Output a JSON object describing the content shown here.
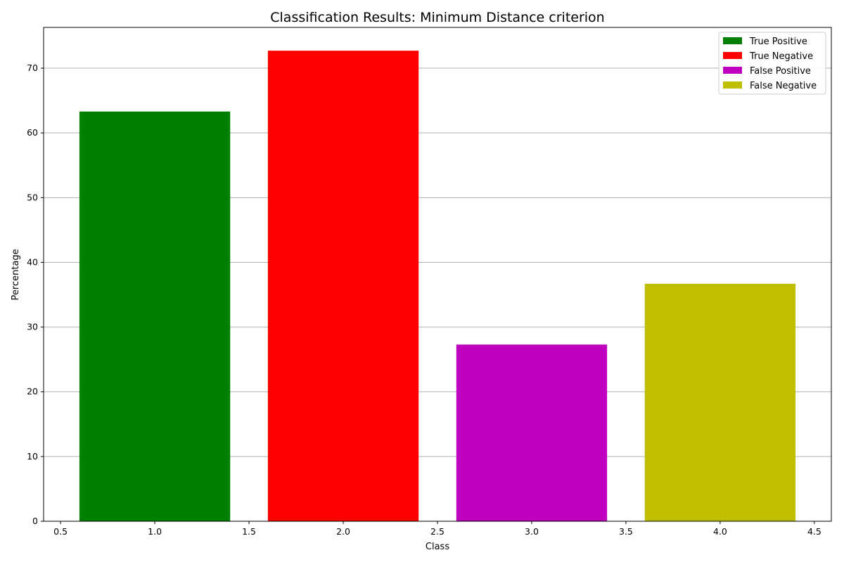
{
  "chart_data": {
    "type": "bar",
    "title": "Classification Results: Minimum Distance criterion",
    "xlabel": "Class",
    "ylabel": "Percentage",
    "xlim": [
      0.41,
      4.59
    ],
    "ylim": [
      0,
      76.3
    ],
    "x_ticks": [
      0.5,
      1.0,
      1.5,
      2.0,
      2.5,
      3.0,
      3.5,
      4.0,
      4.5
    ],
    "x_tick_labels": [
      "0.5",
      "1.0",
      "1.5",
      "2.0",
      "2.5",
      "3.0",
      "3.5",
      "4.0",
      "4.5"
    ],
    "y_ticks": [
      0,
      10,
      20,
      30,
      40,
      50,
      60,
      70
    ],
    "y_tick_labels": [
      "0",
      "10",
      "20",
      "30",
      "40",
      "50",
      "60",
      "70"
    ],
    "grid": "y",
    "legend_position": "top-right",
    "bar_width": 0.8,
    "series": [
      {
        "name": "True Positive",
        "x": 1,
        "value": 63.3,
        "color": "#008000"
      },
      {
        "name": "True Negative",
        "x": 2,
        "value": 72.7,
        "color": "#ff0000"
      },
      {
        "name": "False Positive",
        "x": 3,
        "value": 27.3,
        "color": "#bf00bf"
      },
      {
        "name": "False Negative",
        "x": 4,
        "value": 36.7,
        "color": "#bfbf00"
      }
    ]
  }
}
